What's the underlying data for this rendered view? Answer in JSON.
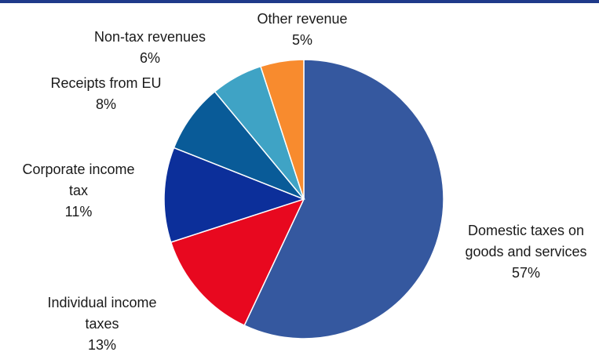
{
  "chart_data": {
    "type": "pie",
    "title": "",
    "start_angle_deg": 0,
    "direction": "clockwise",
    "slices": [
      {
        "label_lines": [
          "Domestic taxes on",
          "goods and services"
        ],
        "value": 57,
        "value_label": "57%",
        "color": "#35589f"
      },
      {
        "label_lines": [
          "Individual income",
          "taxes"
        ],
        "value": 13,
        "value_label": "13%",
        "color": "#e8081f"
      },
      {
        "label_lines": [
          "Corporate income",
          "tax"
        ],
        "value": 11,
        "value_label": "11%",
        "color": "#0c2f9a"
      },
      {
        "label_lines": [
          "Receipts from EU"
        ],
        "value": 8,
        "value_label": "8%",
        "color": "#095b98"
      },
      {
        "label_lines": [
          "Non-tax revenues"
        ],
        "value": 6,
        "value_label": "6%",
        "color": "#3fa3c5"
      },
      {
        "label_lines": [
          "Other revenue"
        ],
        "value": 5,
        "value_label": "5%",
        "color": "#f88b2e"
      }
    ]
  },
  "colors": {
    "top_bar": "#1f3a8a"
  }
}
